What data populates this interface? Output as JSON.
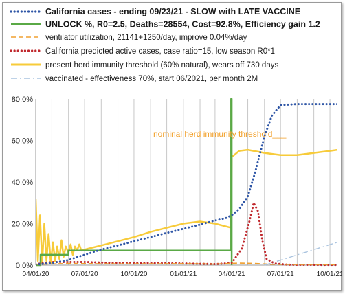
{
  "chart_data": {
    "type": "line",
    "title": "",
    "xlabel": "",
    "ylabel": "",
    "x_ticks": [
      "04/01/20",
      "07/01/20",
      "10/01/20",
      "01/01/21",
      "04/01/21",
      "07/01/21",
      "10/01/21"
    ],
    "y_ticks": [
      "0.0%",
      "20.0%",
      "40.0%",
      "60.0%",
      "80.0%"
    ],
    "ylim": [
      0,
      80
    ],
    "grid": "vertical, monthly",
    "legend_position": "top",
    "annotation": "nominal herd immunity threshold___",
    "legend": [
      {
        "key": "cases",
        "text": "California cases - ending 09/23/21 - SLOW with LATE VACCINE",
        "bold": true,
        "color": "#2f56a6",
        "style": "dotted"
      },
      {
        "key": "unlock",
        "text": "UNLOCK %, R0=2.5,  Deaths=28554, Cost=92.8%, Efficiency gain 1.2",
        "bold": true,
        "color": "#5aa946",
        "style": "solid"
      },
      {
        "key": "ventilator",
        "text": "ventilator utilization, 21141+1250/day, improve 0.04%/day",
        "bold": false,
        "color": "#f0a030",
        "style": "dashed"
      },
      {
        "key": "predicted",
        "text": "California predicted active cases, case ratio=15, low season R0*1",
        "bold": false,
        "color": "#c0282d",
        "style": "dotted"
      },
      {
        "key": "herd",
        "text": "present herd immunity threshold (60% natural), wears off 730 days",
        "bold": false,
        "color": "#f7cb3a",
        "style": "solid"
      },
      {
        "key": "vaccinated",
        "text": "vaccinated - effectiveness 70%, start 06/2021, per month 2M",
        "bold": false,
        "color": "#a9c3df",
        "style": "dashdot"
      }
    ],
    "series": [
      {
        "name": "California cases - ending 09/23/21 - SLOW with LATE VACCINE",
        "color": "#2f56a6",
        "x": [
          "2020-04-01",
          "2020-05-01",
          "2020-06-01",
          "2020-07-01",
          "2020-08-01",
          "2020-09-01",
          "2020-10-01",
          "2020-11-01",
          "2020-12-01",
          "2021-01-01",
          "2021-02-01",
          "2021-03-01",
          "2021-03-20",
          "2021-04-01",
          "2021-04-15",
          "2021-05-01",
          "2021-05-15",
          "2021-06-01",
          "2021-06-15",
          "2021-07-01",
          "2021-08-01",
          "2021-09-01",
          "2021-10-01",
          "2021-10-15"
        ],
        "y": [
          0.3,
          1.0,
          2.5,
          5.0,
          7.5,
          9.5,
          11.5,
          13.5,
          15.5,
          17.5,
          19.5,
          21.5,
          22.5,
          24,
          27,
          33,
          45,
          62,
          72,
          77,
          77.5,
          77.5,
          77.5,
          77.5
        ]
      },
      {
        "name": "UNLOCK %, R0=2.5,  Deaths=28554, Cost=92.8%, Efficiency gain 1.2",
        "color": "#5aa946",
        "x": [
          "2020-04-01",
          "2020-04-10",
          "2020-04-10",
          "2020-06-01",
          "2020-06-01",
          "2021-03-31",
          "2021-03-31",
          "2021-04-01",
          "2021-04-01"
        ],
        "y": [
          0,
          0,
          5,
          5,
          7,
          7,
          80,
          80,
          0
        ]
      },
      {
        "name": "ventilator utilization, 21141+1250/day, improve 0.04%/day",
        "color": "#f0a030",
        "x": [
          "2020-04-01",
          "2020-06-01",
          "2020-09-01",
          "2021-01-01",
          "2021-03-01",
          "2021-04-15",
          "2021-05-15",
          "2021-06-15",
          "2021-10-15"
        ],
        "y": [
          0.4,
          0.8,
          0.6,
          0.7,
          0.5,
          1.0,
          0.8,
          0.4,
          0.3
        ]
      },
      {
        "name": "California predicted active cases, case ratio=15, low season R0*1",
        "color": "#c0282d",
        "x": [
          "2020-04-01",
          "2020-05-01",
          "2020-07-01",
          "2020-09-01",
          "2020-11-01",
          "2021-01-01",
          "2021-03-01",
          "2021-04-01",
          "2021-04-20",
          "2021-05-05",
          "2021-05-12",
          "2021-05-20",
          "2021-05-28",
          "2021-06-05",
          "2021-06-20",
          "2021-07-15",
          "2021-10-15"
        ],
        "y": [
          0.5,
          1.5,
          1.5,
          1.0,
          1.0,
          0.8,
          0.5,
          1.0,
          8,
          22,
          30,
          26,
          12,
          3,
          0.8,
          0.2,
          0.1
        ]
      },
      {
        "name": "present herd immunity threshold (60% natural), wears off 730 days",
        "color": "#f7cb3a",
        "x": [
          "2020-04-01",
          "2020-04-05",
          "2020-04-09",
          "2020-04-13",
          "2020-04-17",
          "2020-04-21",
          "2020-04-25",
          "2020-04-29",
          "2020-05-03",
          "2020-05-07",
          "2020-05-11",
          "2020-05-15",
          "2020-05-19",
          "2020-05-23",
          "2020-05-27",
          "2020-06-01",
          "2020-06-05",
          "2020-06-09",
          "2020-06-13",
          "2020-06-17",
          "2020-06-21",
          "2020-06-25",
          "2020-07-01",
          "2020-08-01",
          "2020-09-01",
          "2020-10-01",
          "2020-11-01",
          "2020-12-01",
          "2021-01-01",
          "2021-02-01",
          "2021-03-01",
          "2021-03-31",
          "2021-04-01",
          "2021-04-15",
          "2021-05-01",
          "2021-06-01",
          "2021-07-01",
          "2021-08-01",
          "2021-09-01",
          "2021-10-01",
          "2021-10-15"
        ],
        "y": [
          32,
          2,
          24,
          1,
          20,
          2,
          15,
          1,
          11,
          2,
          9,
          3,
          12,
          4,
          9,
          6,
          10,
          5,
          9,
          7,
          10,
          7,
          7.5,
          9.5,
          11.5,
          13.5,
          16,
          18,
          20,
          21,
          20,
          18,
          52,
          55,
          55.5,
          54,
          53,
          53,
          54,
          55,
          55.5
        ]
      },
      {
        "name": "vaccinated - effectiveness 70%, start 06/2021, per month 2M",
        "color": "#a9c3df",
        "x": [
          "2021-06-01",
          "2021-10-15"
        ],
        "y": [
          0,
          11
        ]
      }
    ]
  }
}
